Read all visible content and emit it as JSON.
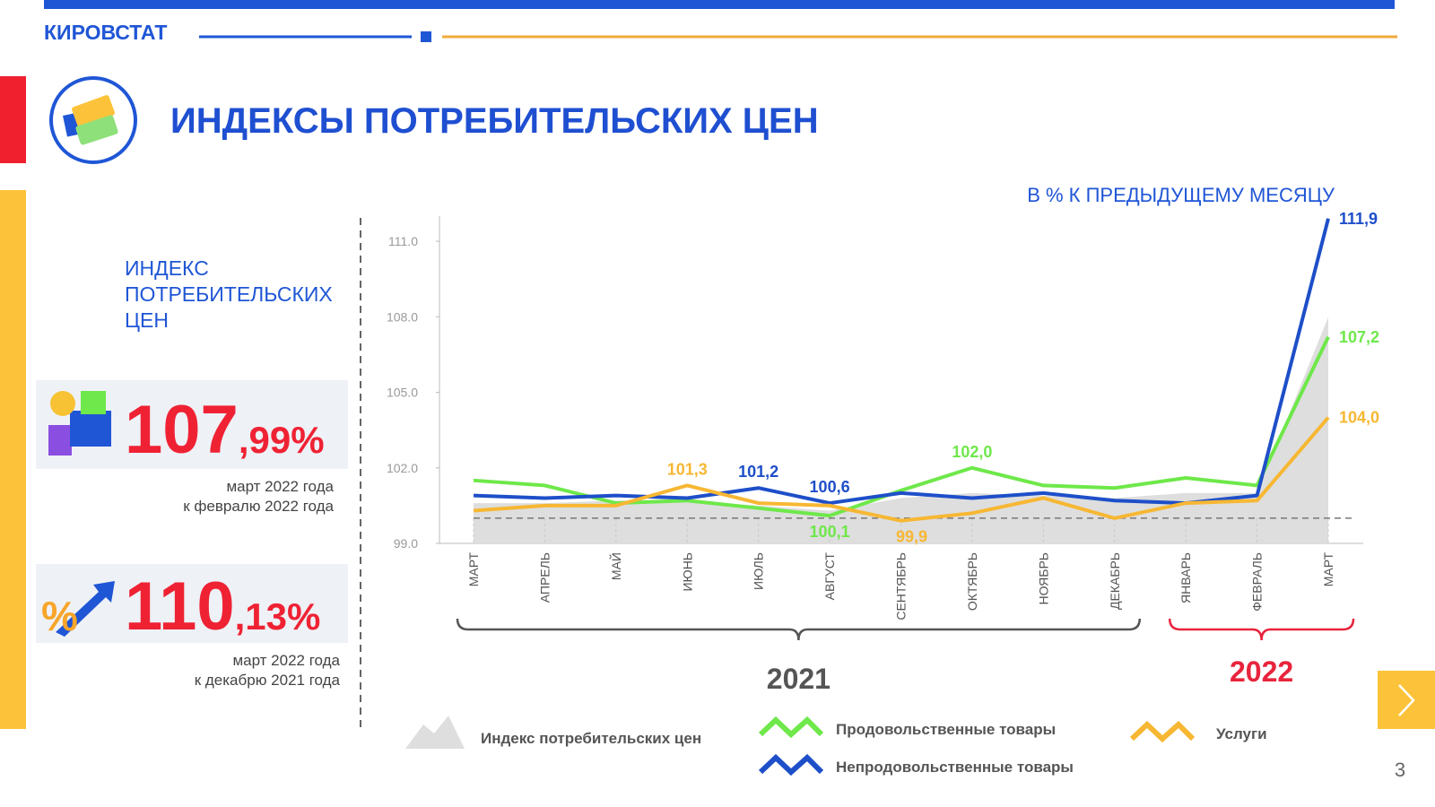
{
  "header": {
    "brand": "КИРОВСТАТ",
    "title": "ИНДЕКСЫ ПОТРЕБИТЕЛЬСКИХ ЦЕН",
    "page_number": "3"
  },
  "sidebar": {
    "heading": [
      "ИНДЕКС",
      "ПОТРЕБИТЕЛЬСКИХ",
      "ЦЕН"
    ],
    "kpis": [
      {
        "integer": "107",
        "fraction": ",99%",
        "caption": [
          "март 2022 года",
          "к  февралю 2022 года"
        ]
      },
      {
        "integer": "110",
        "fraction": ",13%",
        "caption": [
          "март 2022 года",
          "к  декабрю 2021 года"
        ]
      }
    ]
  },
  "chart_data": {
    "type": "line",
    "subtitle": "В % К ПРЕДЫДУЩЕМУ МЕСЯЦУ",
    "categories": [
      "МАРТ",
      "АПРЕЛЬ",
      "МАЙ",
      "ИЮНЬ",
      "ИЮЛЬ",
      "АВГУСТ",
      "СЕНТЯБРЬ",
      "ОКТЯБРЬ",
      "НОЯБРЬ",
      "ДЕКАБРЬ",
      "ЯНВАРЬ",
      "ФЕВРАЛЬ",
      "МАРТ"
    ],
    "year_groups": [
      {
        "label": "2021",
        "color": "#555555"
      },
      {
        "label": "2022",
        "color": "#e8243c"
      }
    ],
    "ylim": [
      99,
      112
    ],
    "yticks": [
      {
        "value": 99,
        "label": "99.0"
      },
      {
        "value": 102,
        "label": "102.0"
      },
      {
        "value": 105,
        "label": "105.0"
      },
      {
        "value": 108,
        "label": "108.0"
      },
      {
        "value": 111,
        "label": "111.0"
      }
    ],
    "reference_line": 100,
    "series": [
      {
        "name": "Индекс потребительских  цен",
        "type": "area",
        "color": "#dedede",
        "values": [
          100.6,
          100.6,
          100.7,
          100.7,
          100.5,
          100.3,
          100.8,
          101.0,
          100.9,
          100.8,
          101.0,
          101.0,
          107.99
        ]
      },
      {
        "name": "Продовольственные товары",
        "type": "line",
        "color": "#6ee84a",
        "values": [
          101.5,
          101.3,
          100.6,
          100.7,
          100.4,
          100.1,
          101.1,
          102.0,
          101.3,
          101.2,
          101.6,
          101.3,
          107.2
        ],
        "value_labels": [
          null,
          null,
          null,
          null,
          null,
          "100,1",
          null,
          "102,0",
          null,
          null,
          null,
          null,
          "107,2"
        ]
      },
      {
        "name": "Непродовольственные товары",
        "type": "line",
        "color": "#1e4fc9",
        "values": [
          100.9,
          100.8,
          100.9,
          100.8,
          101.2,
          100.6,
          101.0,
          100.8,
          101.0,
          100.7,
          100.6,
          100.9,
          111.9
        ],
        "value_labels": [
          null,
          null,
          null,
          null,
          "101,2",
          "100,6",
          null,
          null,
          null,
          null,
          null,
          null,
          "111,9"
        ]
      },
      {
        "name": "Услуги",
        "type": "line",
        "color": "#f7b733",
        "values": [
          100.3,
          100.5,
          100.5,
          101.3,
          100.6,
          100.5,
          99.9,
          100.2,
          100.8,
          100.0,
          100.6,
          100.7,
          104.0
        ],
        "value_labels": [
          null,
          null,
          null,
          "101,3",
          null,
          null,
          "99,9",
          null,
          null,
          null,
          null,
          null,
          "104,0"
        ]
      }
    ]
  }
}
